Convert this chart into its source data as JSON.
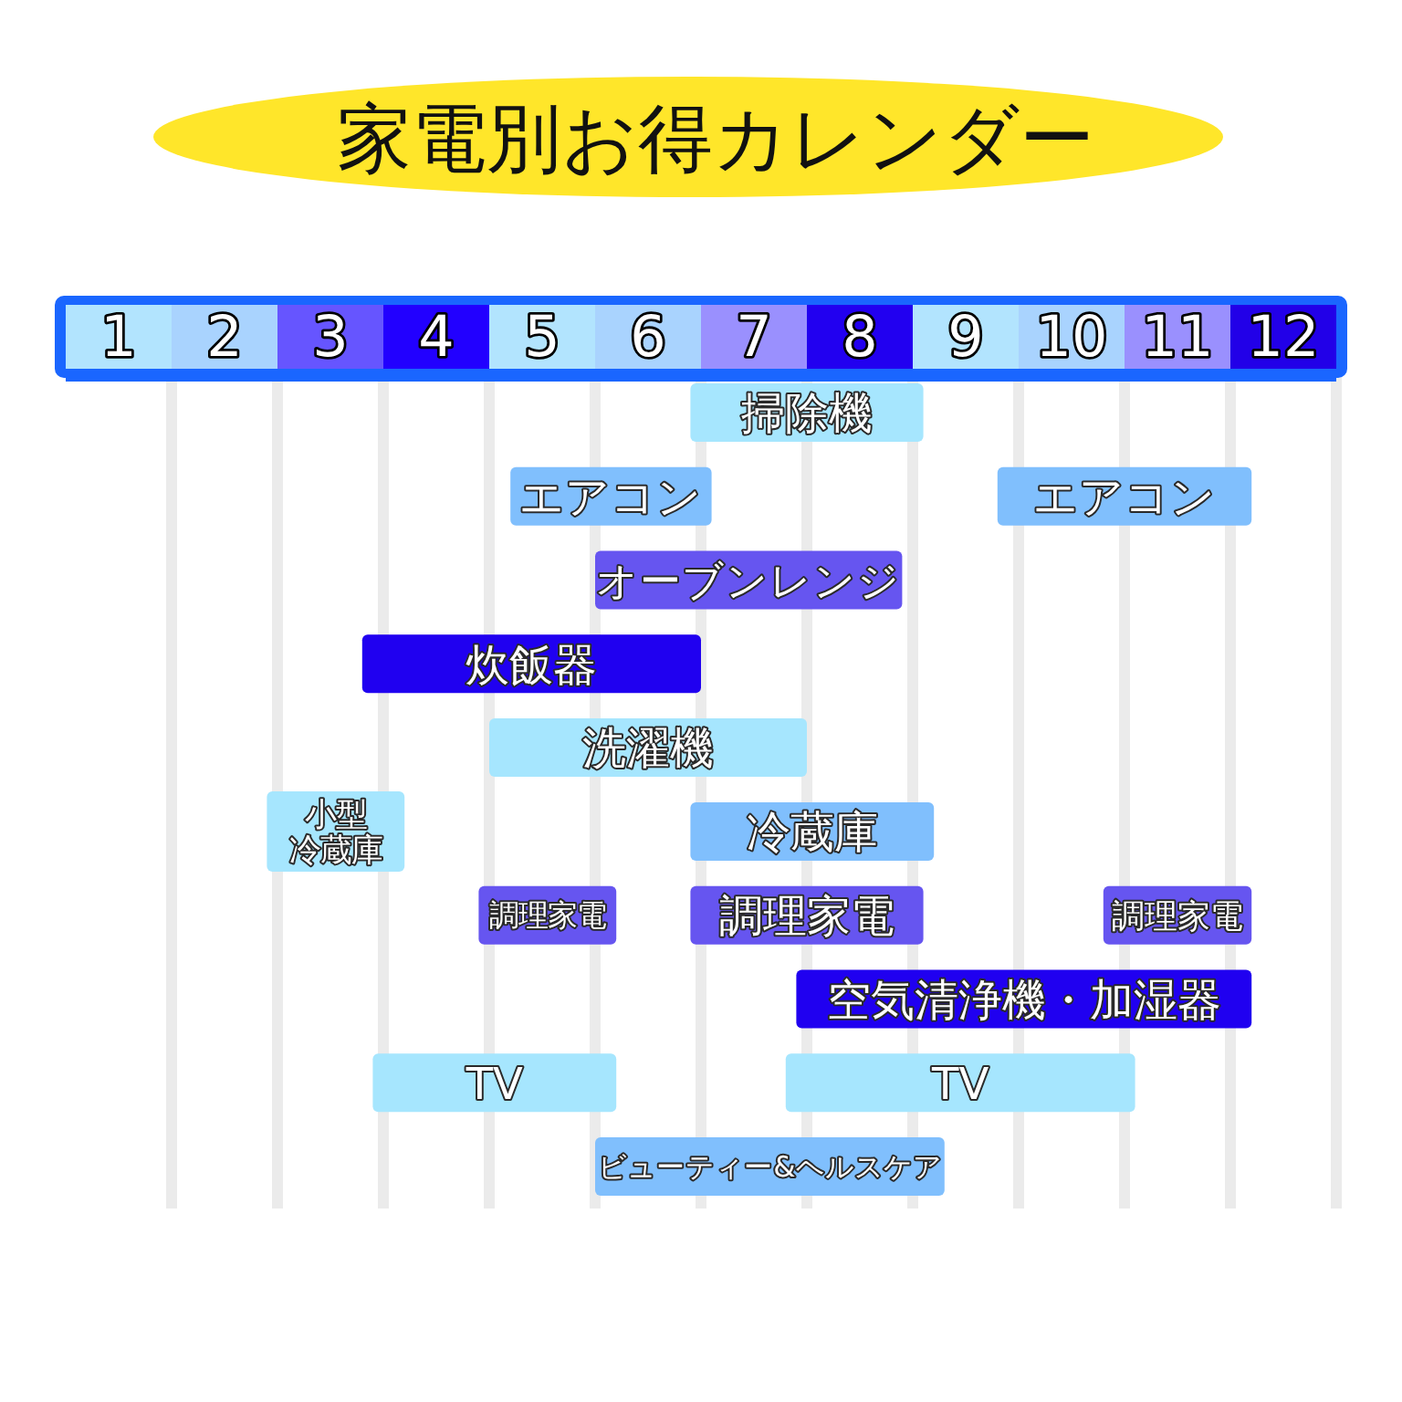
{
  "chart_data": {
    "type": "bar",
    "orientation": "horizontal",
    "title": "家電別お得カレンダー",
    "categories": [
      null,
      null,
      null,
      null,
      null,
      null,
      null,
      null,
      null,
      null
    ],
    "series": [
      {
        "base": [
          6.9,
          5.2,
          6.0,
          3.8,
          5.0,
          2.9,
          4.9,
          7.9,
          3.9,
          6.0
        ],
        "values": [
          2.2,
          1.9,
          2.9,
          3.2,
          3.0,
          1.3,
          1.3,
          4.3,
          2.3,
          3.3
        ],
        "colors": [
          "#a6e6fe",
          "#80bffd",
          "#6655f0",
          "#2000f0",
          "#a6e6fe",
          "#a6e6fe",
          "#6655f0",
          "#2000f0",
          "#a6e6fe",
          "#80bffd"
        ],
        "value_labels": [
          "掃除機",
          "エアコン",
          "オーブンレンジ",
          "炊飯器",
          "洗濯機",
          "小型冷蔵庫",
          "調理家電",
          "空気清浄機・加湿器",
          "TV",
          "ビューティー&ヘルスケア"
        ]
      },
      {
        "base": [
          null,
          9.8,
          null,
          null,
          null,
          6.9,
          6.9,
          null,
          7.8,
          null
        ],
        "values": [
          null,
          2.4,
          null,
          null,
          null,
          2.3,
          2.2,
          null,
          3.3,
          null
        ],
        "colors": [
          null,
          "#80bffd",
          null,
          null,
          null,
          "#80bffd",
          "#6655f0",
          null,
          "#a6e6fe",
          null
        ],
        "value_labels": [
          null,
          "エアコン",
          null,
          null,
          null,
          "冷蔵庫",
          "調理家電",
          null,
          "TV",
          null
        ]
      },
      {
        "base": [
          null,
          null,
          null,
          null,
          null,
          null,
          10.8,
          null,
          null,
          null
        ],
        "values": [
          null,
          null,
          null,
          null,
          null,
          null,
          1.4,
          null,
          null,
          null
        ],
        "colors": [
          null,
          null,
          null,
          null,
          null,
          null,
          "#6655f0",
          null,
          null,
          null
        ],
        "value_labels": [
          null,
          null,
          null,
          null,
          null,
          null,
          "調理家電",
          null,
          null,
          null
        ]
      }
    ],
    "xlim": [
      1,
      13
    ],
    "xticks": [
      {
        "value": 1.5,
        "label": "1"
      },
      {
        "value": 2.5,
        "label": "2"
      },
      {
        "value": 3.5,
        "label": "3"
      },
      {
        "value": 4.5,
        "label": "4"
      },
      {
        "value": 5.5,
        "label": "5"
      },
      {
        "value": 6.5,
        "label": "6"
      },
      {
        "value": 7.5,
        "label": "7"
      },
      {
        "value": 8.5,
        "label": "8"
      },
      {
        "value": 9.5,
        "label": "9"
      },
      {
        "value": 10.5,
        "label": "10"
      },
      {
        "value": 11.5,
        "label": "11"
      },
      {
        "value": 12.5,
        "label": "12"
      }
    ],
    "ref_lines": [
      {
        "axis": "x",
        "value": 2,
        "color": "#ebebeb"
      },
      {
        "axis": "x",
        "value": 3,
        "color": "#ebebeb"
      },
      {
        "axis": "x",
        "value": 4,
        "color": "#ebebeb"
      },
      {
        "axis": "x",
        "value": 5,
        "color": "#ebebeb"
      },
      {
        "axis": "x",
        "value": 6,
        "color": "#ebebeb"
      },
      {
        "axis": "x",
        "value": 7,
        "color": "#ebebeb"
      },
      {
        "axis": "x",
        "value": 8,
        "color": "#ebebeb"
      },
      {
        "axis": "x",
        "value": 9,
        "color": "#ebebeb"
      },
      {
        "axis": "x",
        "value": 10,
        "color": "#ebebeb"
      },
      {
        "axis": "x",
        "value": 11,
        "color": "#ebebeb"
      },
      {
        "axis": "x",
        "value": 12,
        "color": "#ebebeb"
      },
      {
        "axis": "x",
        "value": 13,
        "color": "#ebebeb"
      }
    ]
  }
}
